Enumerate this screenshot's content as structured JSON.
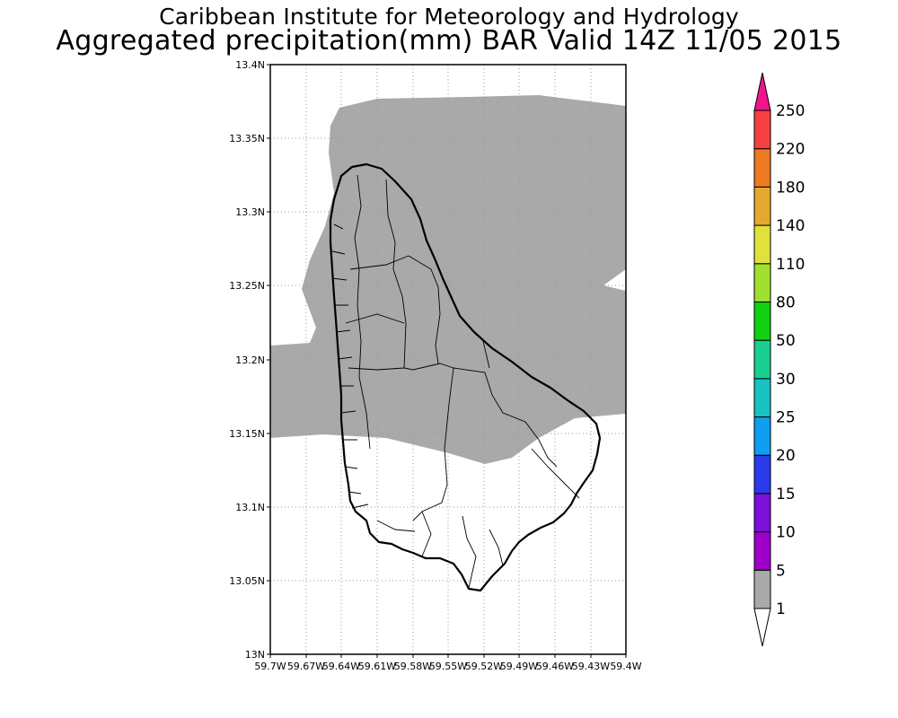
{
  "header": {
    "title_line1": "Caribbean Institute for Meteorology and Hydrology",
    "title_line2": "Aggregated precipitation(mm) BAR Valid 14Z 11/05 2015"
  },
  "map": {
    "region": "Barbados",
    "lon_range": [
      -59.7,
      -59.4
    ],
    "lat_range": [
      13.0,
      13.4
    ],
    "grid": "dotted",
    "lat_ticks": [
      "13.4N",
      "13.35N",
      "13.3N",
      "13.25N",
      "13.2N",
      "13.15N",
      "13.1N",
      "13.05N",
      "13N"
    ],
    "lon_ticks": [
      "59.7W",
      "59.67W",
      "59.64W",
      "59.61W",
      "59.58W",
      "59.55W",
      "59.52W",
      "59.49W",
      "59.46W",
      "59.43W",
      "59.4W"
    ],
    "precip_shading": {
      "category": "1-5 mm",
      "color": "#a9a9a9"
    }
  },
  "colorbar": {
    "labels": [
      "1",
      "5",
      "10",
      "15",
      "20",
      "25",
      "30",
      "50",
      "80",
      "110",
      "140",
      "180",
      "220",
      "250"
    ],
    "colors": [
      "#a9a9a9",
      "#9d00c8",
      "#7b10d8",
      "#2a3ae8",
      "#0f9ef0",
      "#16c2c2",
      "#18cf90",
      "#12d012",
      "#a0e030",
      "#dfe23a",
      "#e4aa30",
      "#ee7a24",
      "#f64040",
      "#f0148c"
    ],
    "below_color": "#ffffff"
  }
}
